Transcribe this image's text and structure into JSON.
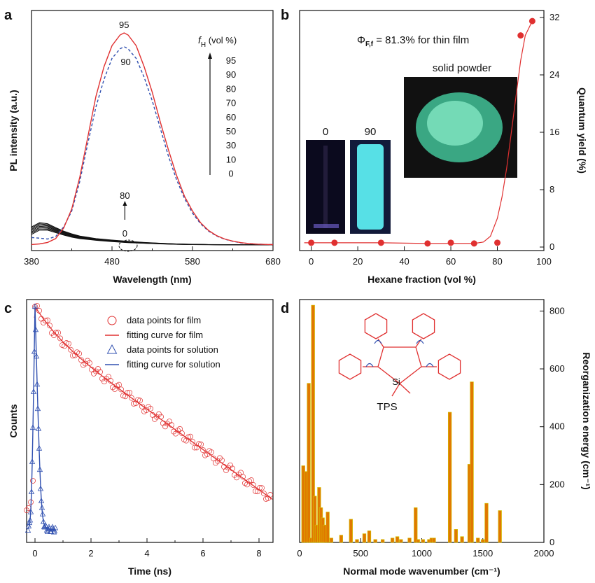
{
  "chart_data": [
    {
      "panel": "a",
      "type": "line",
      "xlabel": "Wavelength (nm)",
      "ylabel": "PL intensity (a.u.)",
      "xlim": [
        380,
        680
      ],
      "xticks": [
        380,
        480,
        580,
        680
      ],
      "ylim": [
        0,
        100
      ],
      "legend_title_symbol": "f",
      "legend_title_sub": "H",
      "legend_title_rest": " (vol %)",
      "legend_values": [
        "95",
        "90",
        "80",
        "70",
        "60",
        "50",
        "30",
        "10",
        "0"
      ],
      "peak_labels": [
        "95",
        "90"
      ],
      "low_labels": [
        "80",
        "0"
      ],
      "series": [
        {
          "name": "95",
          "color": "#e03030",
          "dash": false,
          "x": [
            380,
            390,
            400,
            410,
            420,
            430,
            440,
            450,
            460,
            470,
            480,
            490,
            495,
            500,
            510,
            520,
            530,
            540,
            550,
            560,
            570,
            580,
            590,
            600,
            610,
            620,
            630,
            640,
            650,
            660,
            670,
            680
          ],
          "y": [
            0.2,
            0.5,
            1.2,
            3,
            8,
            17,
            32,
            51,
            70,
            84,
            94,
            99,
            100,
            99,
            94,
            84,
            72,
            58,
            45,
            33,
            23,
            16,
            10.5,
            6.8,
            4.4,
            2.8,
            1.8,
            1.1,
            0.7,
            0.4,
            0.25,
            0.15
          ]
        },
        {
          "name": "90",
          "color": "#3050b0",
          "dash": true,
          "x": [
            380,
            390,
            400,
            410,
            420,
            430,
            440,
            450,
            460,
            470,
            480,
            490,
            495,
            500,
            510,
            520,
            530,
            540,
            550,
            560,
            570,
            580,
            590,
            600,
            610,
            620,
            630,
            640,
            650,
            660,
            670,
            680
          ],
          "y": [
            3.5,
            3.2,
            2.8,
            4,
            8.5,
            16,
            30,
            48,
            65,
            78,
            88,
            92.5,
            93.5,
            92.5,
            88,
            79,
            68,
            55,
            42,
            31,
            22,
            15,
            10,
            6.5,
            4.2,
            2.7,
            1.7,
            1,
            0.65,
            0.4,
            0.25,
            0.15
          ]
        },
        {
          "name": "80",
          "color": "#111111",
          "dash": false,
          "x": [
            380,
            390,
            400,
            410,
            420,
            430,
            440,
            460,
            480,
            500,
            520,
            540,
            560,
            580,
            600,
            640,
            680
          ],
          "y": [
            8.5,
            10.5,
            10,
            8.2,
            6.5,
            5.2,
            4.2,
            3,
            2.3,
            1.7,
            1.2,
            0.8,
            0.5,
            0.3,
            0.2,
            0.1,
            0.05
          ]
        },
        {
          "name": "70",
          "color": "#111111",
          "dash": false,
          "x": [
            380,
            390,
            400,
            410,
            420,
            430,
            440,
            460,
            480,
            500,
            520,
            540,
            560,
            580,
            600,
            640,
            680
          ],
          "y": [
            8.0,
            10.0,
            9.5,
            7.8,
            6.2,
            5.0,
            4.0,
            2.9,
            2.2,
            1.6,
            1.1,
            0.75,
            0.45,
            0.28,
            0.18,
            0.09,
            0.05
          ]
        },
        {
          "name": "60",
          "color": "#111111",
          "dash": false,
          "x": [
            380,
            390,
            400,
            410,
            420,
            430,
            440,
            460,
            480,
            500,
            520,
            540,
            560,
            580,
            600,
            640,
            680
          ],
          "y": [
            7.4,
            9.4,
            9.0,
            7.4,
            5.9,
            4.7,
            3.8,
            2.7,
            2.0,
            1.5,
            1.0,
            0.7,
            0.42,
            0.26,
            0.17,
            0.08,
            0.04
          ]
        },
        {
          "name": "50",
          "color": "#111111",
          "dash": false,
          "x": [
            380,
            390,
            400,
            410,
            420,
            430,
            440,
            460,
            480,
            500,
            520,
            540,
            560,
            580,
            600,
            640,
            680
          ],
          "y": [
            6.8,
            8.8,
            8.5,
            7.0,
            5.6,
            4.5,
            3.6,
            2.6,
            1.9,
            1.4,
            1.0,
            0.65,
            0.4,
            0.24,
            0.16,
            0.08,
            0.04
          ]
        },
        {
          "name": "30",
          "color": "#111111",
          "dash": false,
          "x": [
            380,
            390,
            400,
            410,
            420,
            430,
            440,
            460,
            480,
            500,
            520,
            540,
            560,
            580,
            600,
            640,
            680
          ],
          "y": [
            6.2,
            8.2,
            8.0,
            6.6,
            5.3,
            4.2,
            3.4,
            2.4,
            1.8,
            1.3,
            0.9,
            0.6,
            0.37,
            0.22,
            0.15,
            0.07,
            0.04
          ]
        },
        {
          "name": "10",
          "color": "#111111",
          "dash": false,
          "x": [
            380,
            390,
            400,
            410,
            420,
            430,
            440,
            460,
            480,
            500,
            520,
            540,
            560,
            580,
            600,
            640,
            680
          ],
          "y": [
            5.6,
            7.6,
            7.5,
            6.2,
            5.0,
            4.0,
            3.2,
            2.3,
            1.7,
            1.2,
            0.85,
            0.55,
            0.34,
            0.2,
            0.14,
            0.07,
            0.03
          ]
        },
        {
          "name": "0",
          "color": "#111111",
          "dash": false,
          "x": [
            380,
            390,
            400,
            410,
            420,
            430,
            440,
            460,
            480,
            500,
            520,
            540,
            560,
            580,
            600,
            640,
            680
          ],
          "y": [
            5.0,
            7.0,
            7.0,
            5.8,
            4.7,
            3.7,
            3.0,
            2.2,
            1.6,
            1.1,
            0.8,
            0.5,
            0.3,
            0.18,
            0.12,
            0.06,
            0.03
          ]
        }
      ]
    },
    {
      "panel": "b",
      "type": "scatter",
      "xlabel": "Hexane fraction (vol %)",
      "ylabel": "Quantum yield (%)",
      "xlim": [
        -5,
        100
      ],
      "xticks": [
        0,
        20,
        40,
        60,
        80,
        100
      ],
      "ylim": [
        0,
        32
      ],
      "yticks": [
        0,
        8,
        16,
        24,
        32
      ],
      "y_axis_side": "right",
      "annotation_phi": "Φ",
      "annotation_phi_sub": "F,f",
      "annotation_rest": " = 81.3% for thin film",
      "inset_labels": [
        "0",
        "90",
        "solid powder"
      ],
      "points": {
        "x": [
          0,
          10,
          30,
          50,
          60,
          70,
          80,
          90,
          95
        ],
        "y": [
          0.6,
          0.6,
          0.6,
          0.5,
          0.6,
          0.5,
          0.6,
          29.5,
          31.5
        ]
      },
      "fit": {
        "x": [
          -3,
          10,
          30,
          50,
          60,
          70,
          74,
          77,
          80,
          82,
          84,
          86,
          88,
          90,
          92,
          95
        ],
        "y": [
          0.6,
          0.6,
          0.6,
          0.5,
          0.5,
          0.5,
          0.7,
          1.5,
          4,
          7,
          11,
          16,
          21,
          26,
          29.5,
          31.5
        ]
      },
      "colors": {
        "point": "#e03030",
        "fit": "#e03030"
      }
    },
    {
      "panel": "c",
      "type": "scatter",
      "xlabel": "Time (ns)",
      "ylabel": "Counts",
      "xlim": [
        -0.3,
        8.5
      ],
      "xticks": [
        0,
        2,
        4,
        6,
        8
      ],
      "yscale": "log",
      "legend": [
        {
          "label": "data points for film",
          "marker": "circle",
          "color": "#e03030"
        },
        {
          "label": "fitting curve for film",
          "marker": "line",
          "color": "#e03030"
        },
        {
          "label": "data points for solution",
          "marker": "triangle",
          "color": "#3050b0"
        },
        {
          "label": "fitting curve for solution",
          "marker": "line",
          "color": "#3050b0"
        }
      ],
      "film_decay": {
        "t0": 0.0,
        "tau1": 0.6,
        "a1": 0.35,
        "tau2": 2.6,
        "a2": 0.65
      },
      "solution_decay": {
        "t0": 0.0,
        "tau": 0.05
      }
    },
    {
      "panel": "d",
      "type": "bar",
      "xlabel": "Normal mode wavenumber (cm⁻¹)",
      "ylabel": "Reorganization energy (cm⁻¹)",
      "xlim": [
        0,
        2000
      ],
      "xticks": [
        0,
        500,
        1000,
        1500,
        2000
      ],
      "ylim": [
        0,
        830
      ],
      "yticks": [
        0,
        200,
        400,
        600,
        800
      ],
      "y_axis_side": "right",
      "molecule_label": "TPS",
      "molecule_atom": "Si",
      "bar_color": "#e07800",
      "bar_edge": "#d4c000",
      "bars": {
        "x": [
          30,
          55,
          75,
          95,
          110,
          125,
          140,
          160,
          175,
          190,
          205,
          230,
          260,
          340,
          420,
          470,
          530,
          570,
          620,
          680,
          760,
          800,
          830,
          900,
          950,
          970,
          1010,
          1060,
          1080,
          1100,
          1230,
          1280,
          1330,
          1390,
          1410,
          1460,
          1500,
          1530,
          1640
        ],
        "y": [
          265,
          245,
          550,
          15,
          820,
          160,
          60,
          190,
          120,
          85,
          60,
          105,
          15,
          25,
          80,
          10,
          30,
          40,
          10,
          10,
          15,
          20,
          10,
          15,
          120,
          10,
          10,
          10,
          15,
          15,
          450,
          45,
          20,
          270,
          555,
          15,
          10,
          135,
          110
        ]
      }
    }
  ],
  "panel_letters": {
    "a": "a",
    "b": "b",
    "c": "c",
    "d": "d"
  }
}
